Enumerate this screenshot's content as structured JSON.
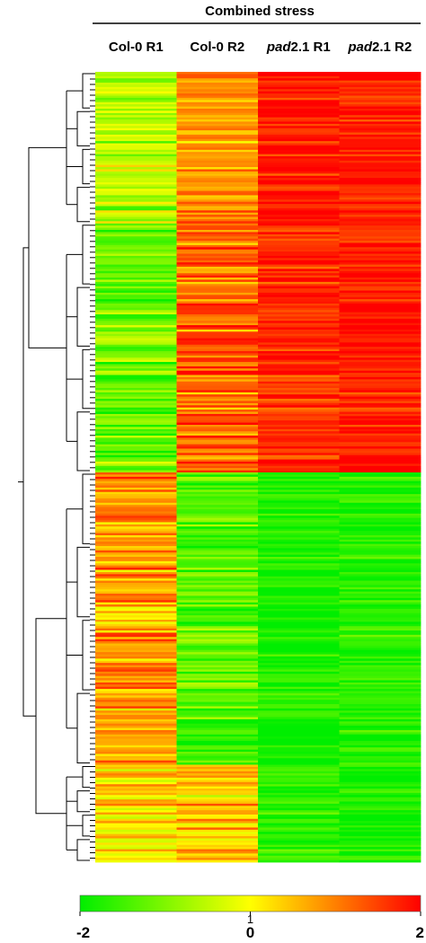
{
  "chart_data": {
    "type": "heatmap",
    "title": "Combined stress",
    "columns": [
      {
        "prefix": "Col-0",
        "suffix": " R1",
        "italic_prefix": false
      },
      {
        "prefix": "Col-0",
        "suffix": " R2",
        "italic_prefix": false
      },
      {
        "prefix": "pad",
        "suffix": "2.1 R1",
        "italic_prefix": true
      },
      {
        "prefix": "pad",
        "suffix": "2.1 R2",
        "italic_prefix": true
      }
    ],
    "clusters": [
      {
        "rows": 70,
        "values": [
          -0.6,
          0.8,
          1.8,
          1.8
        ]
      },
      {
        "rows": 115,
        "values": [
          -1.2,
          1.2,
          1.7,
          1.8
        ]
      },
      {
        "rows": 135,
        "values": [
          0.8,
          -1.4,
          -1.8,
          -1.7
        ]
      },
      {
        "rows": 45,
        "values": [
          0.2,
          0.4,
          -1.7,
          -1.8
        ]
      }
    ],
    "colorbar": {
      "min": -2,
      "mid": 0,
      "max": 2,
      "colors": [
        "#00ee00",
        "#ffff00",
        "#ff0000"
      ],
      "tick_labels": [
        "-2",
        "0",
        "2"
      ],
      "extra_ticks": [
        "1"
      ]
    },
    "dendrogram": true
  }
}
